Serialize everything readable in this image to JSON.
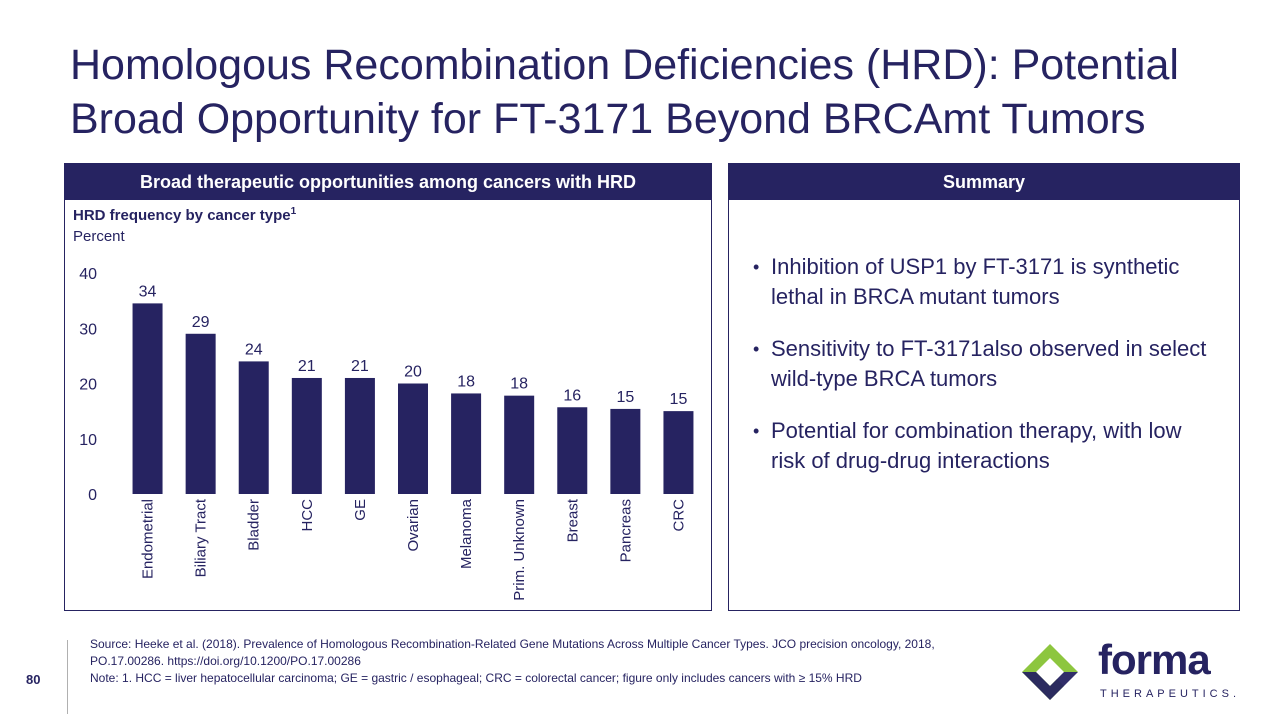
{
  "title": {
    "line1": "Homologous Recombination Deficiencies (HRD): Potential",
    "line2": "Broad Opportunity for FT-3171 Beyond BRCAmt Tumors"
  },
  "left_panel": {
    "header": "Broad therapeutic opportunities among cancers with HRD"
  },
  "right_panel": {
    "header": "Summary",
    "bullets": [
      "Inhibition of USP1 by FT-3171 is synthetic lethal in BRCA mutant tumors",
      "Sensitivity to FT-3171also observed in select wild-type BRCA tumors",
      "Potential for combination therapy, with low risk of drug-drug interactions"
    ]
  },
  "chart_data": {
    "type": "bar",
    "title": "HRD frequency by cancer type",
    "title_superscript": "1",
    "subtitle": "Percent",
    "categories": [
      "Endometrial",
      "Biliary Tract",
      "Bladder",
      "HCC",
      "GE",
      "Ovarian",
      "Melanoma",
      "Prim. Unknown",
      "Breast",
      "Pancreas",
      "CRC"
    ],
    "values": [
      34.5,
      29,
      24,
      21,
      21,
      20,
      18.2,
      17.8,
      15.7,
      15.4,
      15
    ],
    "labels": [
      "34",
      "29",
      "24",
      "21",
      "21",
      "20",
      "18",
      "18",
      "16",
      "15",
      "15"
    ],
    "yticks": [
      0,
      10,
      20,
      30,
      40
    ],
    "ylim": [
      0,
      40
    ],
    "grid": false,
    "bar_color": "#262361"
  },
  "footer": {
    "page_number": "80",
    "source": "Source: Heeke et al. (2018). Prevalence of Homologous Recombination-Related Gene Mutations Across Multiple Cancer Types. JCO precision oncology, 2018, PO.17.00286. https://doi.org/10.1200/PO.17.00286",
    "note": "Note: 1. HCC = liver hepatocellular carcinoma; GE = gastric / esophageal; CRC = colorectal cancer; figure only includes cancers with  ≥ 15% HRD"
  },
  "logo": {
    "word": "forma",
    "sub": "THERAPEUTICS.",
    "icon": "forma-logo-icon"
  },
  "colors": {
    "navy": "#262361",
    "green": "#8dc63f"
  }
}
